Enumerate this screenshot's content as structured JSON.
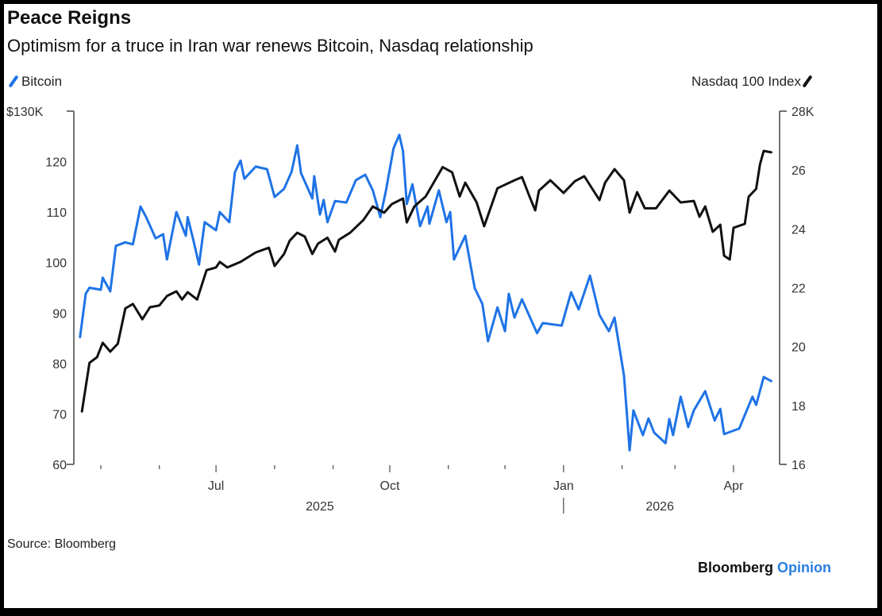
{
  "header": {
    "title": "Peace Reigns",
    "subtitle": "Optimism for a truce in Iran war renews Bitcoin, Nasdaq relationship"
  },
  "footer": {
    "source": "Source: Bloomberg",
    "brand_main": "Bloomberg",
    "brand_accent": "Opinion"
  },
  "colors": {
    "bitcoin": "#1f73e6",
    "nasdaq": "#111111",
    "brand_accent": "#2a7de1"
  },
  "chart_data": {
    "type": "line",
    "title": "Peace Reigns",
    "subtitle": "Optimism for a truce in Iran war renews Bitcoin, Nasdaq relationship",
    "legend": {
      "left": "Bitcoin",
      "right": "Nasdaq 100 Index"
    },
    "grid": false,
    "x_axis": {
      "range": [
        "2025-04-20",
        "2026-04-21"
      ],
      "month_ticks": [
        "2025-05-01",
        "2025-06-01",
        "2025-07-01",
        "2025-08-01",
        "2025-09-01",
        "2025-10-01",
        "2025-11-01",
        "2025-12-01",
        "2026-01-01",
        "2026-02-01",
        "2026-03-01",
        "2026-04-01"
      ],
      "labels": [
        {
          "date": "2025-07-01",
          "text": "Jul"
        },
        {
          "date": "2025-10-01",
          "text": "Oct"
        },
        {
          "date": "2026-01-01",
          "text": "Jan"
        },
        {
          "date": "2026-04-01",
          "text": "Apr"
        }
      ],
      "years": [
        {
          "date": "2025-08-25",
          "text": "2025"
        },
        {
          "date": "2026-02-21",
          "text": "2026"
        }
      ]
    },
    "y_left": {
      "label": "Bitcoin",
      "unit": "$K",
      "range": [
        60,
        130
      ],
      "ticks": [
        {
          "v": 130,
          "text": "$130K"
        },
        {
          "v": 120,
          "text": "120"
        },
        {
          "v": 110,
          "text": "110"
        },
        {
          "v": 100,
          "text": "100"
        },
        {
          "v": 90,
          "text": "90"
        },
        {
          "v": 80,
          "text": "80"
        },
        {
          "v": 70,
          "text": "70"
        },
        {
          "v": 60,
          "text": "60"
        }
      ]
    },
    "y_right": {
      "label": "Nasdaq 100 Index",
      "unit": "K",
      "range": [
        16,
        28
      ],
      "ticks": [
        {
          "v": 28,
          "text": "28K"
        },
        {
          "v": 26,
          "text": "26"
        },
        {
          "v": 24,
          "text": "24"
        },
        {
          "v": 22,
          "text": "22"
        },
        {
          "v": 20,
          "text": "20"
        },
        {
          "v": 18,
          "text": "18"
        },
        {
          "v": 16,
          "text": "16"
        }
      ]
    },
    "series": [
      {
        "name": "Bitcoin",
        "axis": "left",
        "points": [
          [
            "2025-04-20",
            85.2
          ],
          [
            "2025-04-23",
            93.8
          ],
          [
            "2025-04-25",
            95.0
          ],
          [
            "2025-05-01",
            94.6
          ],
          [
            "2025-05-02",
            97.0
          ],
          [
            "2025-05-06",
            94.3
          ],
          [
            "2025-05-09",
            103.3
          ],
          [
            "2025-05-14",
            104.0
          ],
          [
            "2025-05-18",
            103.6
          ],
          [
            "2025-05-22",
            111.1
          ],
          [
            "2025-05-25",
            109.0
          ],
          [
            "2025-05-30",
            104.8
          ],
          [
            "2025-06-03",
            105.6
          ],
          [
            "2025-06-05",
            100.6
          ],
          [
            "2025-06-10",
            110.0
          ],
          [
            "2025-06-15",
            105.3
          ],
          [
            "2025-06-16",
            109.0
          ],
          [
            "2025-06-19",
            104.4
          ],
          [
            "2025-06-22",
            99.6
          ],
          [
            "2025-06-25",
            108.0
          ],
          [
            "2025-07-01",
            106.4
          ],
          [
            "2025-07-03",
            110.0
          ],
          [
            "2025-07-08",
            108.0
          ],
          [
            "2025-07-11",
            117.9
          ],
          [
            "2025-07-14",
            120.2
          ],
          [
            "2025-07-16",
            116.6
          ],
          [
            "2025-07-22",
            119.0
          ],
          [
            "2025-07-28",
            118.5
          ],
          [
            "2025-08-01",
            113.0
          ],
          [
            "2025-08-06",
            114.6
          ],
          [
            "2025-08-10",
            118.0
          ],
          [
            "2025-08-13",
            123.2
          ],
          [
            "2025-08-15",
            117.7
          ],
          [
            "2025-08-21",
            112.7
          ],
          [
            "2025-08-22",
            117.1
          ],
          [
            "2025-08-25",
            109.5
          ],
          [
            "2025-08-27",
            112.4
          ],
          [
            "2025-08-29",
            108.0
          ],
          [
            "2025-09-02",
            112.2
          ],
          [
            "2025-09-08",
            111.9
          ],
          [
            "2025-09-13",
            116.3
          ],
          [
            "2025-09-18",
            117.4
          ],
          [
            "2025-09-22",
            114.3
          ],
          [
            "2025-09-26",
            109.0
          ],
          [
            "2025-09-29",
            114.3
          ],
          [
            "2025-10-03",
            122.6
          ],
          [
            "2025-10-06",
            125.3
          ],
          [
            "2025-10-08",
            122.1
          ],
          [
            "2025-10-10",
            111.6
          ],
          [
            "2025-10-13",
            115.5
          ],
          [
            "2025-10-17",
            107.2
          ],
          [
            "2025-10-21",
            111.1
          ],
          [
            "2025-10-22",
            107.7
          ],
          [
            "2025-10-27",
            114.3
          ],
          [
            "2025-10-31",
            108.0
          ],
          [
            "2025-11-02",
            110.0
          ],
          [
            "2025-11-04",
            100.6
          ],
          [
            "2025-11-10",
            105.3
          ],
          [
            "2025-11-15",
            94.9
          ],
          [
            "2025-11-19",
            91.8
          ],
          [
            "2025-11-22",
            84.4
          ],
          [
            "2025-11-27",
            91.1
          ],
          [
            "2025-12-01",
            86.4
          ],
          [
            "2025-12-03",
            93.8
          ],
          [
            "2025-12-06",
            89.1
          ],
          [
            "2025-12-10",
            92.7
          ],
          [
            "2025-12-18",
            86.0
          ],
          [
            "2025-12-21",
            88.0
          ],
          [
            "2025-12-31",
            87.5
          ],
          [
            "2026-01-05",
            94.1
          ],
          [
            "2026-01-09",
            90.7
          ],
          [
            "2026-01-15",
            97.4
          ],
          [
            "2026-01-20",
            89.6
          ],
          [
            "2026-01-25",
            86.4
          ],
          [
            "2026-01-28",
            89.1
          ],
          [
            "2026-02-02",
            77.6
          ],
          [
            "2026-02-05",
            62.8
          ],
          [
            "2026-02-07",
            70.7
          ],
          [
            "2026-02-12",
            65.8
          ],
          [
            "2026-02-15",
            69.1
          ],
          [
            "2026-02-18",
            66.3
          ],
          [
            "2026-02-24",
            64.2
          ],
          [
            "2026-02-26",
            69.0
          ],
          [
            "2026-02-28",
            65.8
          ],
          [
            "2026-03-04",
            73.4
          ],
          [
            "2026-03-08",
            67.4
          ],
          [
            "2026-03-11",
            70.7
          ],
          [
            "2026-03-17",
            74.5
          ],
          [
            "2026-03-22",
            68.7
          ],
          [
            "2026-03-25",
            71.0
          ],
          [
            "2026-03-27",
            66.0
          ],
          [
            "2026-04-04",
            67.1
          ],
          [
            "2026-04-11",
            73.4
          ],
          [
            "2026-04-13",
            71.8
          ],
          [
            "2026-04-17",
            77.3
          ],
          [
            "2026-04-21",
            76.5
          ]
        ]
      },
      {
        "name": "Nasdaq 100 Index",
        "axis": "right",
        "points": [
          [
            "2025-04-21",
            17.8
          ],
          [
            "2025-04-25",
            19.45
          ],
          [
            "2025-04-29",
            19.64
          ],
          [
            "2025-05-02",
            20.13
          ],
          [
            "2025-05-06",
            19.83
          ],
          [
            "2025-05-10",
            20.1
          ],
          [
            "2025-05-14",
            21.3
          ],
          [
            "2025-05-18",
            21.45
          ],
          [
            "2025-05-23",
            20.93
          ],
          [
            "2025-05-27",
            21.34
          ],
          [
            "2025-06-01",
            21.4
          ],
          [
            "2025-06-05",
            21.72
          ],
          [
            "2025-06-10",
            21.88
          ],
          [
            "2025-06-13",
            21.6
          ],
          [
            "2025-06-16",
            21.85
          ],
          [
            "2025-06-21",
            21.6
          ],
          [
            "2025-06-26",
            22.6
          ],
          [
            "2025-07-01",
            22.69
          ],
          [
            "2025-07-03",
            22.88
          ],
          [
            "2025-07-07",
            22.69
          ],
          [
            "2025-07-14",
            22.88
          ],
          [
            "2025-07-22",
            23.2
          ],
          [
            "2025-07-29",
            23.36
          ],
          [
            "2025-08-01",
            22.74
          ],
          [
            "2025-08-06",
            23.15
          ],
          [
            "2025-08-09",
            23.6
          ],
          [
            "2025-08-13",
            23.87
          ],
          [
            "2025-08-17",
            23.74
          ],
          [
            "2025-08-21",
            23.15
          ],
          [
            "2025-08-24",
            23.5
          ],
          [
            "2025-08-29",
            23.7
          ],
          [
            "2025-09-02",
            23.23
          ],
          [
            "2025-09-04",
            23.63
          ],
          [
            "2025-09-10",
            23.87
          ],
          [
            "2025-09-17",
            24.3
          ],
          [
            "2025-09-22",
            24.76
          ],
          [
            "2025-09-28",
            24.55
          ],
          [
            "2025-10-02",
            24.84
          ],
          [
            "2025-10-08",
            25.03
          ],
          [
            "2025-10-10",
            24.22
          ],
          [
            "2025-10-14",
            24.76
          ],
          [
            "2025-10-20",
            25.1
          ],
          [
            "2025-10-29",
            26.1
          ],
          [
            "2025-11-03",
            25.92
          ],
          [
            "2025-11-07",
            25.1
          ],
          [
            "2025-11-10",
            25.57
          ],
          [
            "2025-11-16",
            24.9
          ],
          [
            "2025-11-20",
            24.09
          ],
          [
            "2025-11-27",
            25.38
          ],
          [
            "2025-12-06",
            25.65
          ],
          [
            "2025-12-10",
            25.76
          ],
          [
            "2025-12-14",
            25.1
          ],
          [
            "2025-12-17",
            24.63
          ],
          [
            "2025-12-19",
            25.3
          ],
          [
            "2025-12-25",
            25.65
          ],
          [
            "2026-01-01",
            25.22
          ],
          [
            "2026-01-07",
            25.62
          ],
          [
            "2026-01-12",
            25.79
          ],
          [
            "2026-01-20",
            24.98
          ],
          [
            "2026-01-23",
            25.57
          ],
          [
            "2026-01-28",
            26.03
          ],
          [
            "2026-02-02",
            25.65
          ],
          [
            "2026-02-05",
            24.55
          ],
          [
            "2026-02-09",
            25.25
          ],
          [
            "2026-02-13",
            24.7
          ],
          [
            "2026-02-19",
            24.7
          ],
          [
            "2026-02-26",
            25.3
          ],
          [
            "2026-03-04",
            24.9
          ],
          [
            "2026-03-11",
            24.95
          ],
          [
            "2026-03-14",
            24.41
          ],
          [
            "2026-03-17",
            24.76
          ],
          [
            "2026-03-21",
            23.9
          ],
          [
            "2026-03-25",
            24.14
          ],
          [
            "2026-03-27",
            23.09
          ],
          [
            "2026-03-30",
            22.96
          ],
          [
            "2026-04-01",
            24.04
          ],
          [
            "2026-04-07",
            24.17
          ],
          [
            "2026-04-09",
            25.09
          ],
          [
            "2026-04-13",
            25.36
          ],
          [
            "2026-04-15",
            26.19
          ],
          [
            "2026-04-17",
            26.65
          ],
          [
            "2026-04-21",
            26.6
          ]
        ]
      }
    ]
  }
}
